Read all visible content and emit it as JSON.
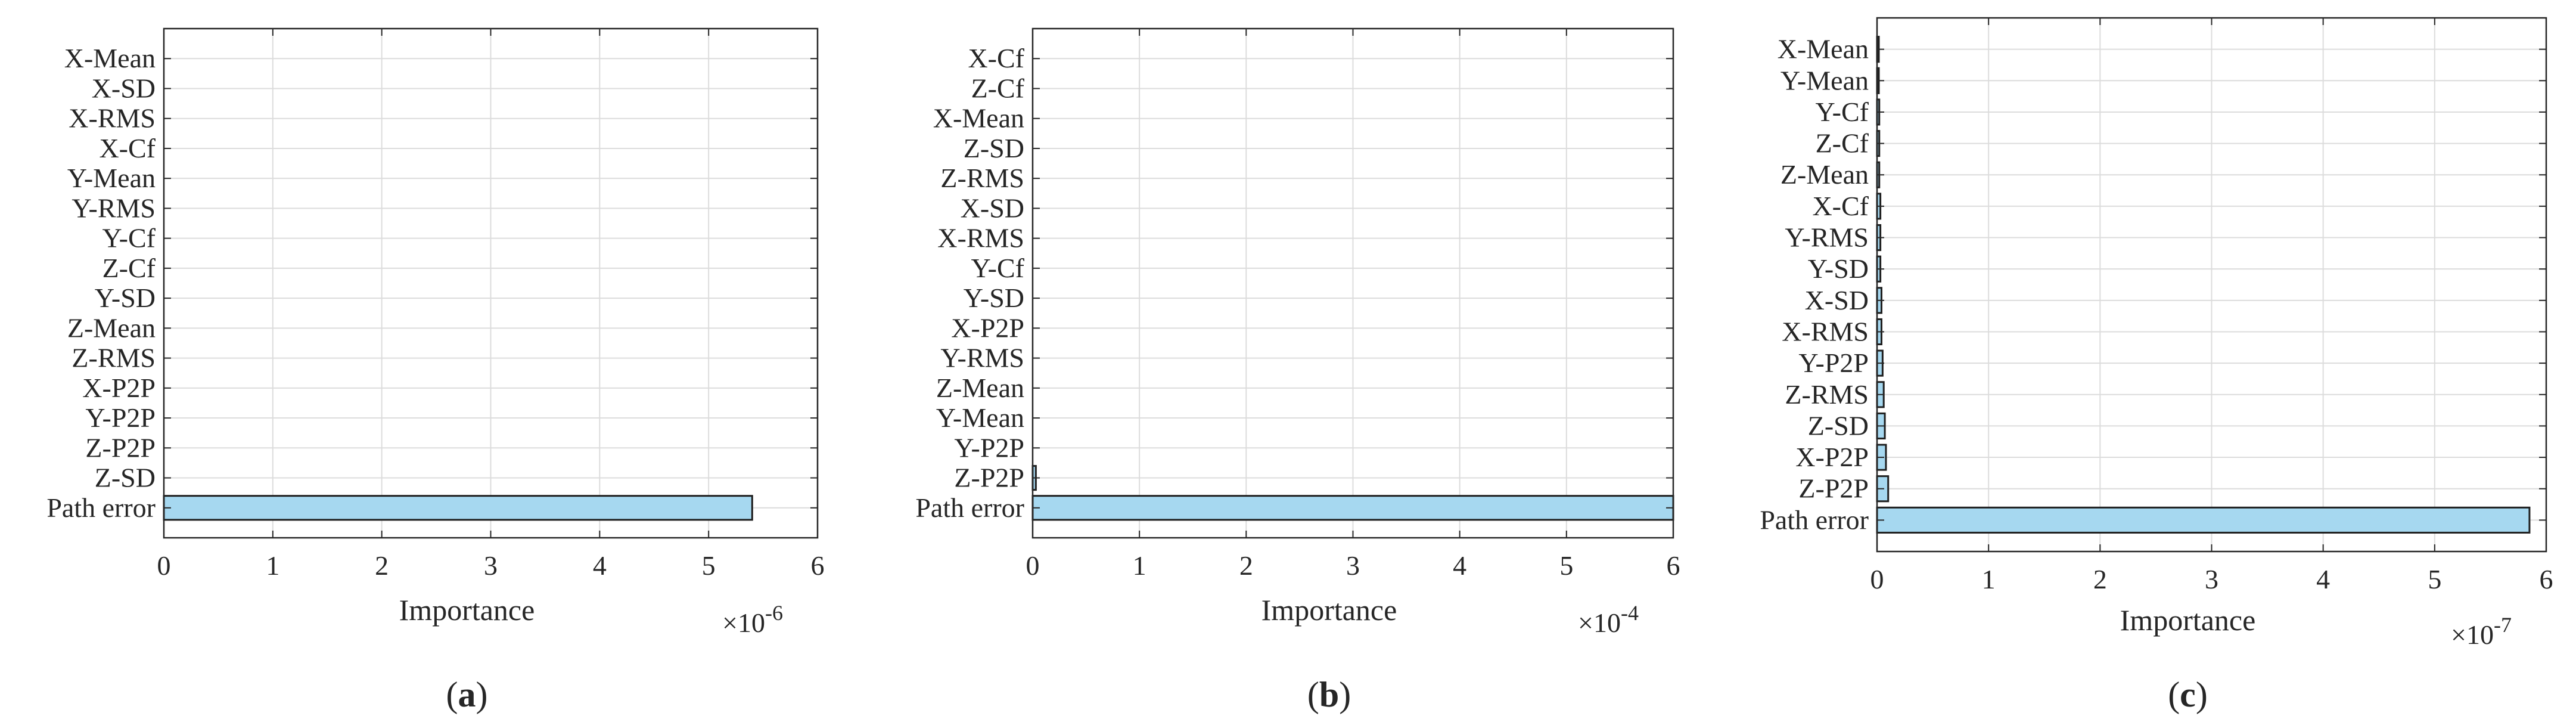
{
  "chart_data": [
    {
      "type": "bar",
      "orientation": "horizontal",
      "panel_label": "a",
      "xlabel": "Importance",
      "exponent_label": "×10",
      "exponent": "-6",
      "xlim": [
        0,
        6
      ],
      "xticks": [
        "0",
        "1",
        "2",
        "3",
        "4",
        "5",
        "6"
      ],
      "grid": true,
      "categories": [
        "X-Mean",
        "X-SD",
        "X-RMS",
        "X-Cf",
        "Y-Mean",
        "Y-RMS",
        "Y-Cf",
        "Z-Cf",
        "Y-SD",
        "Z-Mean",
        "Z-RMS",
        "X-P2P",
        "Y-P2P",
        "Z-P2P",
        "Z-SD",
        "Path error"
      ],
      "values": [
        0,
        0,
        0,
        0,
        0,
        0,
        0,
        0,
        0,
        0,
        0,
        0,
        0,
        0,
        0,
        5.4
      ]
    },
    {
      "type": "bar",
      "orientation": "horizontal",
      "panel_label": "b",
      "xlabel": "Importance",
      "exponent_label": "×10",
      "exponent": "-4",
      "xlim": [
        0,
        6
      ],
      "xticks": [
        "0",
        "1",
        "2",
        "3",
        "4",
        "5",
        "6"
      ],
      "grid": true,
      "categories": [
        "X-Cf",
        "Z-Cf",
        "X-Mean",
        "Z-SD",
        "Z-RMS",
        "X-SD",
        "X-RMS",
        "Y-Cf",
        "Y-SD",
        "X-P2P",
        "Y-RMS",
        "Z-Mean",
        "Y-Mean",
        "Y-P2P",
        "Z-P2P",
        "Path error"
      ],
      "values": [
        0,
        0,
        0,
        0,
        0,
        0,
        0,
        0,
        0,
        0,
        0,
        0,
        0,
        0,
        0.03,
        6.0
      ]
    },
    {
      "type": "bar",
      "orientation": "horizontal",
      "panel_label": "c",
      "xlabel": "Importance",
      "exponent_label": "×10",
      "exponent": "-7",
      "xlim": [
        0,
        6
      ],
      "xticks": [
        "0",
        "1",
        "2",
        "3",
        "4",
        "5",
        "6"
      ],
      "grid": true,
      "categories": [
        "X-Mean",
        "Y-Mean",
        "Y-Cf",
        "Z-Cf",
        "Z-Mean",
        "X-Cf",
        "Y-RMS",
        "Y-SD",
        "X-SD",
        "X-RMS",
        "Y-P2P",
        "Z-RMS",
        "Z-SD",
        "X-P2P",
        "Z-P2P",
        "Path error"
      ],
      "values": [
        0.01,
        0.01,
        0.02,
        0.02,
        0.02,
        0.03,
        0.03,
        0.03,
        0.04,
        0.04,
        0.05,
        0.06,
        0.07,
        0.08,
        0.1,
        5.85
      ]
    }
  ]
}
